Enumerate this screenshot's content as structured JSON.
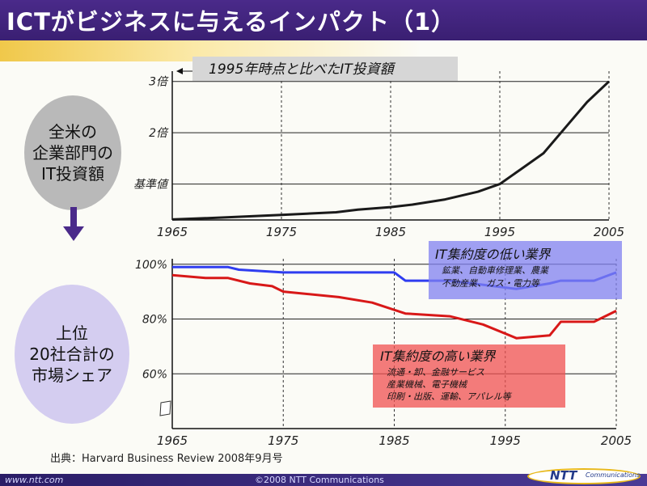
{
  "slide": {
    "title": "ICTがビジネスに与えるインパクト（1）",
    "left_label_top": "全米の\n企業部門の\nIT投資額",
    "left_label_bottom": "上位\n20社合計の\n市場シェア",
    "source": "出典：Harvard Business Review 2008年9月号",
    "footer_left": "www.ntt.com",
    "footer_center": "©2008 NTT Communications",
    "logo_text": "NTT",
    "logo_sub": "Communications"
  },
  "colors": {
    "header": "#3a1f72",
    "accent_band": "#f0c84a",
    "series_it_line": "#1a1a1a",
    "series_low": "#2f3df0",
    "series_high": "#d81818",
    "legend_low_box": "#8080f0",
    "legend_high_box": "#f05050",
    "left_oval_top": "#b9b9b9",
    "left_oval_bottom": "#d4cdf0",
    "arrow": "#4a2a8a"
  },
  "chart_data": [
    {
      "type": "line",
      "annotation": "1995年時点と比べたIT投資額",
      "xlim": [
        1965,
        2005
      ],
      "x_ticks": [
        1965,
        1975,
        1985,
        1995,
        2005
      ],
      "y_ticks": [
        {
          "value": 1,
          "label": "基準値"
        },
        {
          "value": 2,
          "label": "2倍"
        },
        {
          "value": 3,
          "label": "3倍"
        }
      ],
      "ylim": [
        0.3,
        3.2
      ],
      "grid": "dashed-vertical",
      "series": [
        {
          "x": [
            1965,
            1970,
            1975,
            1980,
            1982,
            1985,
            1987,
            1990,
            1993,
            1995,
            1997,
            1999,
            2001,
            2003,
            2005
          ],
          "y": [
            0.31,
            0.35,
            0.4,
            0.45,
            0.5,
            0.55,
            0.6,
            0.7,
            0.85,
            1.0,
            1.3,
            1.6,
            2.1,
            2.6,
            3.0
          ]
        }
      ]
    },
    {
      "type": "line",
      "xlim": [
        1965,
        2005
      ],
      "x_ticks": [
        1965,
        1975,
        1985,
        1995,
        2005
      ],
      "y_ticks": [
        {
          "value": 60,
          "label": "60%"
        },
        {
          "value": 80,
          "label": "80%"
        },
        {
          "value": 100,
          "label": "100%"
        }
      ],
      "ylim": [
        40,
        102
      ],
      "grid": "dashed-vertical",
      "series": [
        {
          "name": "IT集約度の低い業界",
          "detail": [
            "鉱業、自動車修理業、農業",
            "不動産業、ガス・電力等"
          ],
          "x": [
            1965,
            1970,
            1971,
            1975,
            1980,
            1985,
            1986,
            1990,
            1994,
            1996,
            1999,
            2000,
            2003,
            2005
          ],
          "y": [
            99,
            99,
            98,
            97,
            97,
            97,
            94,
            94,
            92,
            91,
            93,
            94,
            94,
            97
          ]
        },
        {
          "name": "IT集約度の高い業界",
          "detail": [
            "流通・卸、金融サービス",
            "産業機械、電子機械",
            "印刷・出版、運輸、アパレル等"
          ],
          "x": [
            1965,
            1968,
            1970,
            1972,
            1974,
            1975,
            1980,
            1983,
            1986,
            1990,
            1993,
            1996,
            1999,
            2000,
            2003,
            2005
          ],
          "y": [
            96,
            95,
            95,
            93,
            92,
            90,
            88,
            86,
            82,
            81,
            78,
            73,
            74,
            79,
            79,
            83
          ]
        }
      ]
    }
  ]
}
